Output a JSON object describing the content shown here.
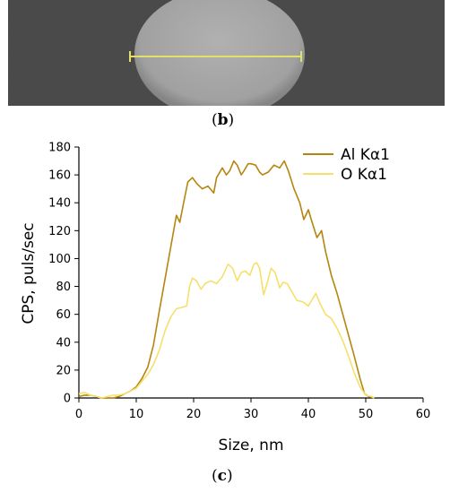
{
  "panels": {
    "top_label": "b",
    "bottom_label": "c"
  },
  "micrograph": {
    "background_color": "#3a3a3a",
    "particle_color": "#b4b4b4",
    "scan_line_color": "#e3e06a",
    "scan_start_nm": 0,
    "scan_end_nm": 51
  },
  "chart_data": {
    "type": "line",
    "xlabel": "Size, nm",
    "ylabel": "CPS, puls/sec",
    "xlim": [
      0,
      60
    ],
    "ylim": [
      0,
      180
    ],
    "xticks": [
      0,
      10,
      20,
      30,
      40,
      50,
      60
    ],
    "yticks": [
      0,
      20,
      40,
      60,
      80,
      100,
      120,
      140,
      160,
      180
    ],
    "grid": false,
    "legend_position": "top-right",
    "series": [
      {
        "name": "Al Kα1",
        "color": "#b5860f",
        "points": [
          [
            0,
            1
          ],
          [
            1,
            2
          ],
          [
            2,
            2
          ],
          [
            3,
            1
          ],
          [
            4,
            0
          ],
          [
            5,
            0
          ],
          [
            6,
            0
          ],
          [
            7,
            1
          ],
          [
            8,
            3
          ],
          [
            9,
            5
          ],
          [
            10,
            8
          ],
          [
            11,
            14
          ],
          [
            12,
            22
          ],
          [
            13,
            38
          ],
          [
            14,
            62
          ],
          [
            15,
            85
          ],
          [
            16,
            108
          ],
          [
            17,
            131
          ],
          [
            17.6,
            126
          ],
          [
            18.5,
            145
          ],
          [
            19,
            155
          ],
          [
            19.8,
            158
          ],
          [
            20.5,
            154
          ],
          [
            21.5,
            150
          ],
          [
            22.5,
            152
          ],
          [
            23.5,
            147
          ],
          [
            24,
            158
          ],
          [
            25,
            165
          ],
          [
            25.7,
            160
          ],
          [
            26.3,
            163
          ],
          [
            27,
            170
          ],
          [
            27.6,
            167
          ],
          [
            28.3,
            160
          ],
          [
            28.8,
            163
          ],
          [
            29.5,
            168
          ],
          [
            30,
            168
          ],
          [
            30.8,
            167
          ],
          [
            31.5,
            162
          ],
          [
            32,
            160
          ],
          [
            33,
            162
          ],
          [
            34,
            167
          ],
          [
            35,
            165
          ],
          [
            35.8,
            170
          ],
          [
            36.5,
            163
          ],
          [
            37.5,
            150
          ],
          [
            38.5,
            140
          ],
          [
            39.2,
            128
          ],
          [
            40,
            135
          ],
          [
            40.5,
            128
          ],
          [
            41.5,
            115
          ],
          [
            42.3,
            120
          ],
          [
            43,
            105
          ],
          [
            44,
            88
          ],
          [
            45,
            75
          ],
          [
            46,
            60
          ],
          [
            47,
            45
          ],
          [
            48,
            30
          ],
          [
            49,
            14
          ],
          [
            49.8,
            3
          ],
          [
            50.5,
            1
          ],
          [
            51.5,
            0
          ]
        ]
      },
      {
        "name": "O Kα1",
        "color": "#f5e06b",
        "points": [
          [
            0,
            3
          ],
          [
            1,
            4
          ],
          [
            2,
            2
          ],
          [
            3,
            1
          ],
          [
            4,
            0
          ],
          [
            5,
            1
          ],
          [
            6,
            2
          ],
          [
            7,
            2
          ],
          [
            8,
            3
          ],
          [
            9,
            5
          ],
          [
            10,
            7
          ],
          [
            11,
            12
          ],
          [
            12,
            17
          ],
          [
            13,
            24
          ],
          [
            14,
            34
          ],
          [
            15,
            48
          ],
          [
            16,
            58
          ],
          [
            17,
            64
          ],
          [
            18,
            65
          ],
          [
            18.8,
            66
          ],
          [
            19.3,
            80
          ],
          [
            19.8,
            86
          ],
          [
            20.5,
            84
          ],
          [
            21.3,
            78
          ],
          [
            22,
            82
          ],
          [
            23,
            84
          ],
          [
            24,
            82
          ],
          [
            25,
            87
          ],
          [
            26,
            96
          ],
          [
            26.8,
            93
          ],
          [
            27.6,
            84
          ],
          [
            28.3,
            90
          ],
          [
            29,
            91
          ],
          [
            29.8,
            88
          ],
          [
            30.5,
            96
          ],
          [
            31,
            97
          ],
          [
            31.5,
            93
          ],
          [
            32.2,
            74
          ],
          [
            32.8,
            82
          ],
          [
            33.5,
            93
          ],
          [
            34.2,
            90
          ],
          [
            35,
            79
          ],
          [
            35.6,
            83
          ],
          [
            36.3,
            82
          ],
          [
            37,
            77
          ],
          [
            38,
            70
          ],
          [
            39,
            69
          ],
          [
            40,
            66
          ],
          [
            40.7,
            71
          ],
          [
            41.3,
            75
          ],
          [
            42,
            68
          ],
          [
            43,
            60
          ],
          [
            44,
            57
          ],
          [
            45,
            50
          ],
          [
            46,
            41
          ],
          [
            47,
            30
          ],
          [
            48,
            18
          ],
          [
            49,
            8
          ],
          [
            50,
            2
          ],
          [
            51,
            1
          ],
          [
            51.5,
            0
          ]
        ]
      }
    ]
  }
}
